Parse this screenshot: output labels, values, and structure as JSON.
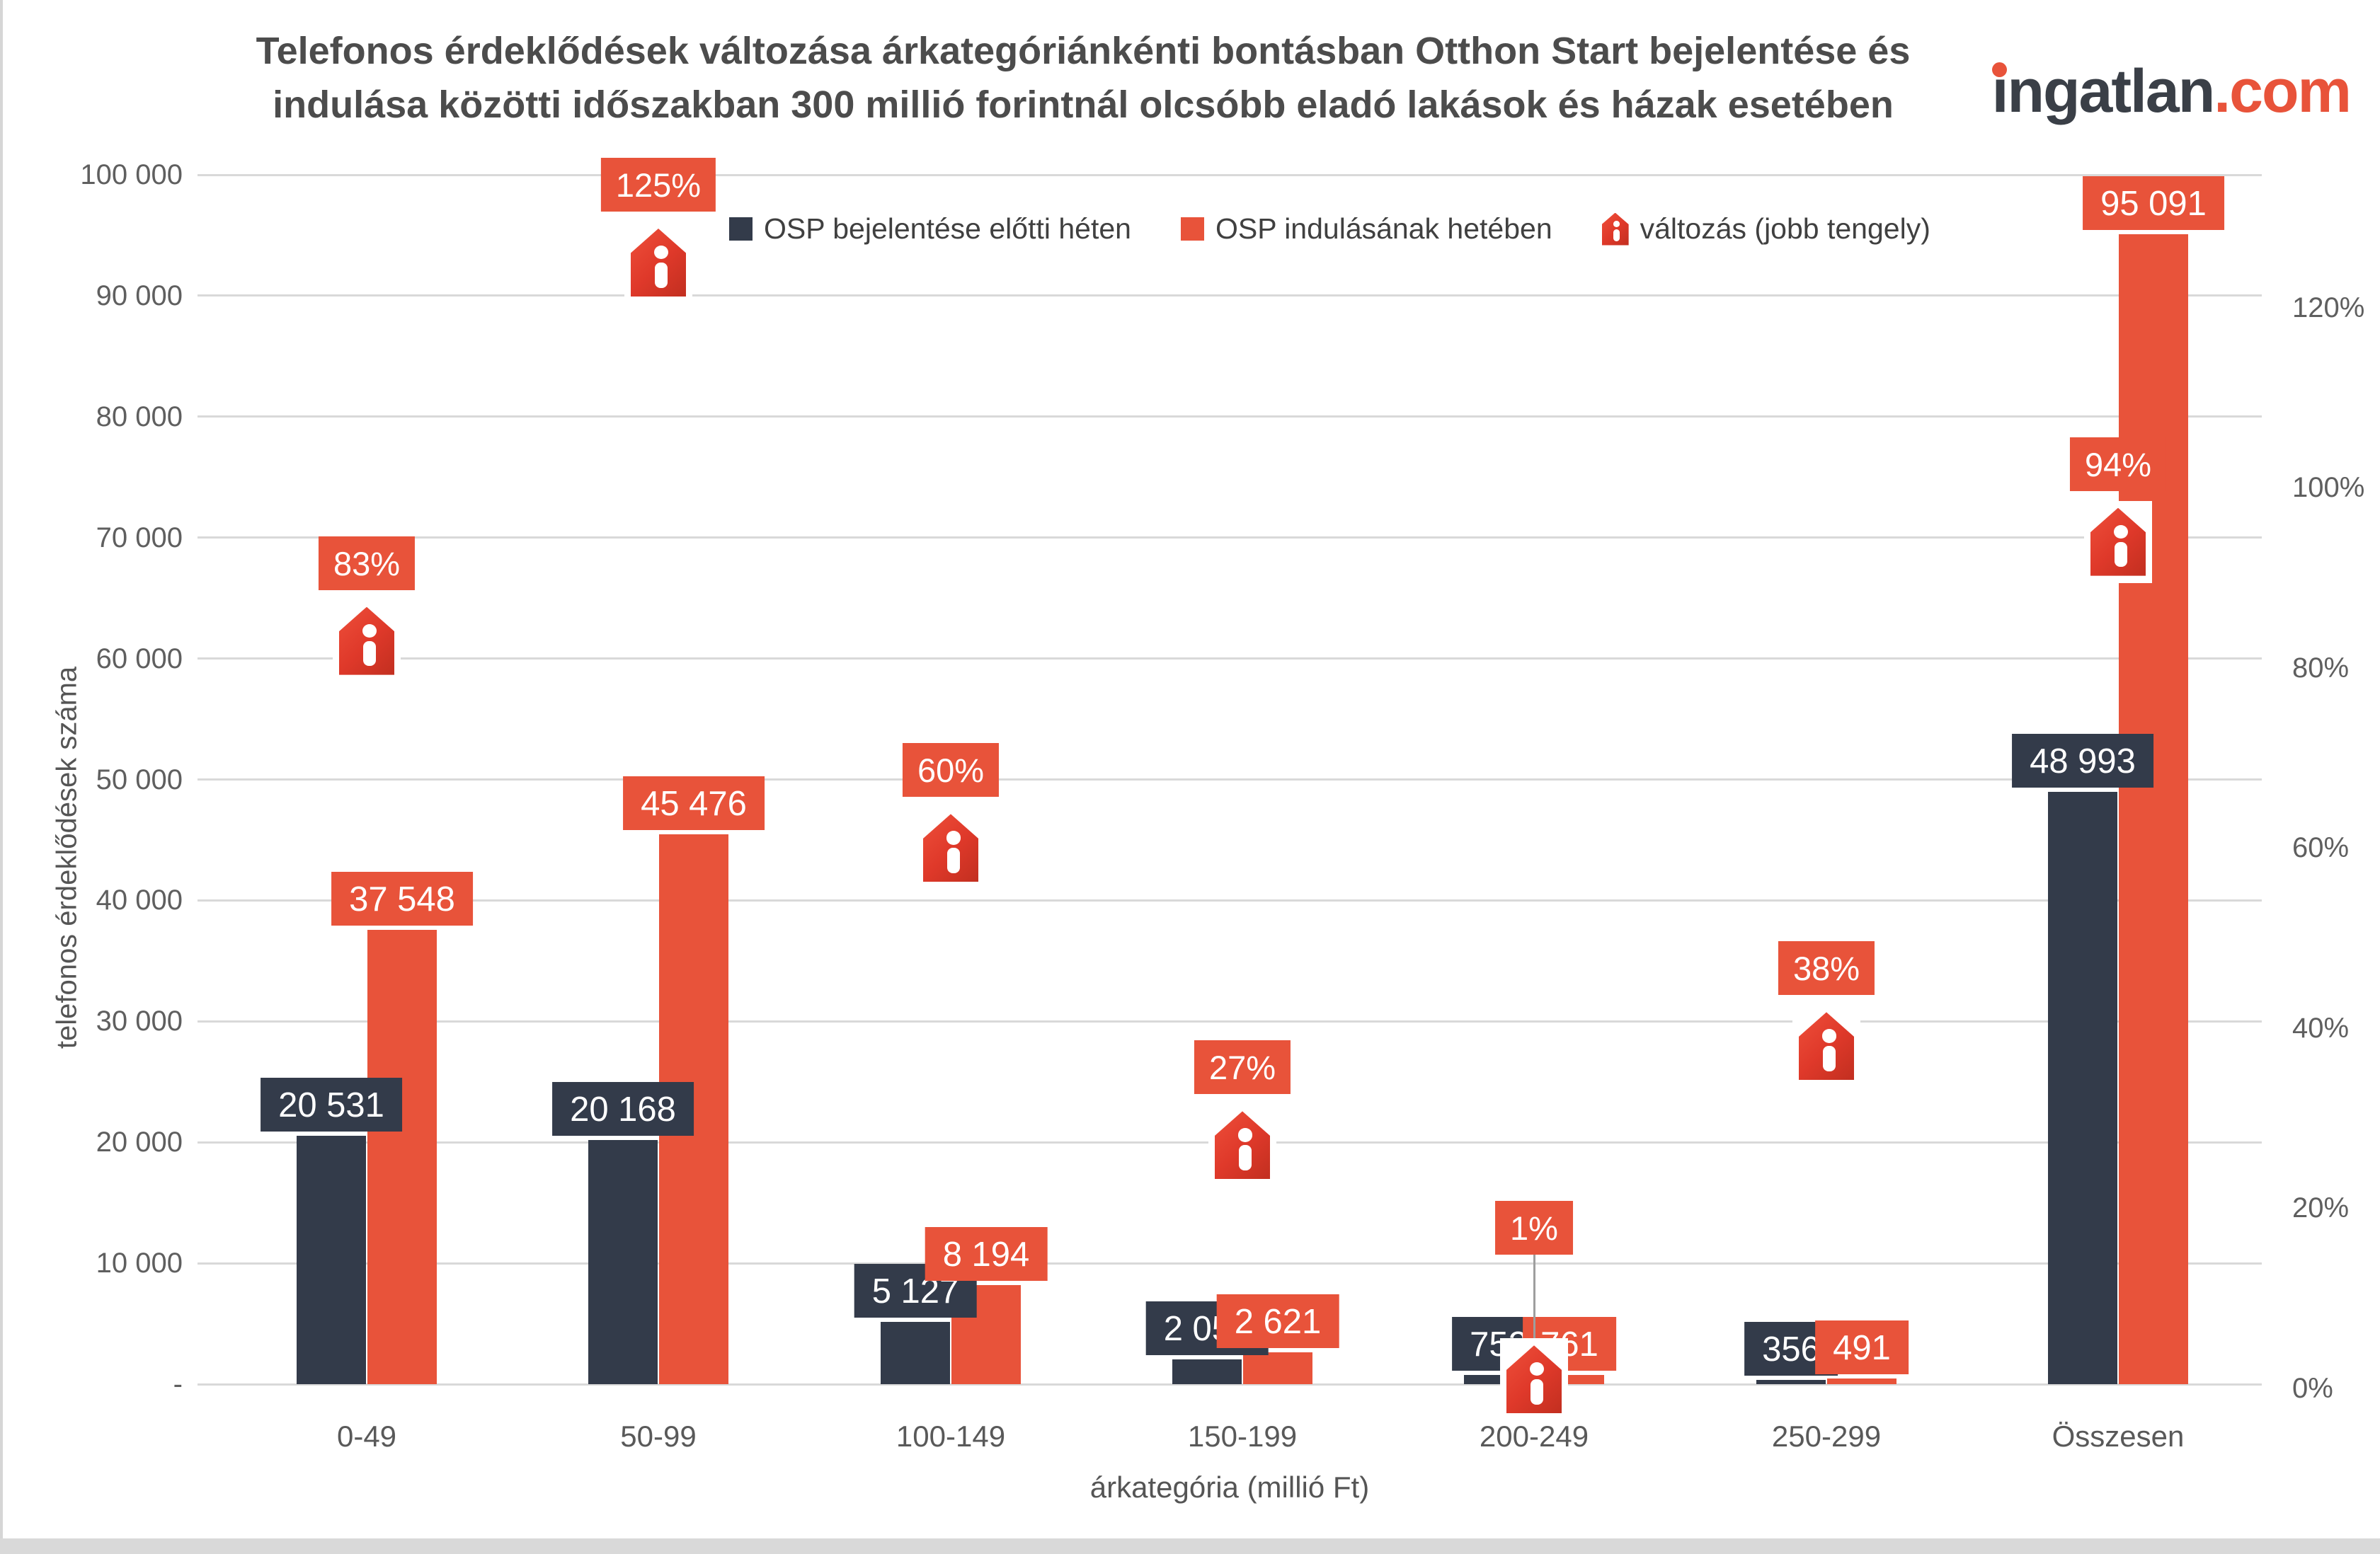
{
  "title": {
    "line1": "Telefonos érdeklődések változása árkategóriánkénti bontásban Otthon Start bejelentése és",
    "line2": "indulása közötti időszakban 300 millió forintnál olcsóbb eladó lakások és házak esetében"
  },
  "logo": {
    "i": "i",
    "rest": "ngatlan",
    "tld": ".com"
  },
  "legend": {
    "prev": "OSP bejelentése előtti héten",
    "new": "OSP indulásának hetében",
    "change": "változás (jobb tengely)"
  },
  "axes": {
    "left_title": "telefonos érdeklődések száma",
    "x_title": "árkategória (millió Ft)",
    "left_ticks": [
      {
        "v": 100000,
        "label": "100 000"
      },
      {
        "v": 90000,
        "label": "90 000"
      },
      {
        "v": 80000,
        "label": "80 000"
      },
      {
        "v": 70000,
        "label": "70 000"
      },
      {
        "v": 60000,
        "label": "60 000"
      },
      {
        "v": 50000,
        "label": "50 000"
      },
      {
        "v": 40000,
        "label": "40 000"
      },
      {
        "v": 30000,
        "label": "30 000"
      },
      {
        "v": 20000,
        "label": "20 000"
      },
      {
        "v": 10000,
        "label": "10 000"
      },
      {
        "v": 0,
        "label": "-"
      }
    ],
    "right_ticks": [
      {
        "pct": 120,
        "label": "120%"
      },
      {
        "pct": 100,
        "label": "100%"
      },
      {
        "pct": 80,
        "label": "80%"
      },
      {
        "pct": 60,
        "label": "60%"
      },
      {
        "pct": 40,
        "label": "40%"
      },
      {
        "pct": 20,
        "label": "20%"
      },
      {
        "pct": 0,
        "label": "0%"
      }
    ]
  },
  "chart_data": {
    "type": "bar",
    "categories": [
      "0-49",
      "50-99",
      "100-149",
      "150-199",
      "200-249",
      "250-299",
      "Összesen"
    ],
    "series": [
      {
        "name": "OSP bejelentése előtti héten",
        "color": "#333b4a",
        "values": [
          20531,
          20168,
          5127,
          2059,
          752,
          356,
          48993
        ],
        "labels": [
          "20 531",
          "20 168",
          "5 127",
          "2 059",
          "752",
          "356",
          "48 993"
        ]
      },
      {
        "name": "OSP indulásának hetében",
        "color": "#e8533a",
        "values": [
          37548,
          45476,
          8194,
          2621,
          761,
          491,
          95091
        ],
        "labels": [
          "37 548",
          "45 476",
          "8 194",
          "2 621",
          "761",
          "491",
          "95 091"
        ]
      }
    ],
    "change_series": {
      "name": "változás (jobb tengely)",
      "axis": "right",
      "values": [
        83,
        125,
        60,
        27,
        1,
        38,
        94
      ],
      "labels": [
        "83%",
        "125%",
        "60%",
        "27%",
        "1%",
        "38%",
        "94%"
      ],
      "detached_label_categories": [
        "200-249"
      ]
    },
    "left_axis": {
      "min": 0,
      "max": 100000,
      "step": 10000
    },
    "right_axis": {
      "min": 0,
      "max": 120,
      "step": 20,
      "format": "percent"
    },
    "grid": "horizontal",
    "legend_position": "top-center"
  },
  "colors": {
    "orange": "#e8533a",
    "navy": "#333b4a",
    "grid": "#d9d9d9",
    "tick_text": "#5f5f5f",
    "title_text": "#4c4c4c",
    "leader_line": "#9e9e9e",
    "house_red": "#d8392a"
  }
}
